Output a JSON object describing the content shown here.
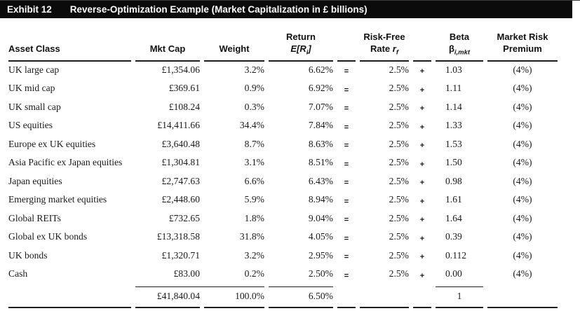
{
  "title_bar": {
    "exhibit_label": "Exhibit 12",
    "title": "Reverse-Optimization Example (Market Capitalization in £ billions)"
  },
  "table": {
    "headers": {
      "asset_class": "Asset Class",
      "mkt_cap": "Mkt Cap",
      "weight": "Weight",
      "return_line1": "Return",
      "return_pre": "E[R",
      "return_sub": "i",
      "return_post": "]",
      "riskfree_line1": "Risk-Free",
      "riskfree_word": "Rate ",
      "riskfree_sym": "r",
      "riskfree_sub": "f",
      "beta_line1": "Beta",
      "beta_sym": "β",
      "beta_sub": "i,mkt",
      "premium_line1": "Market Risk",
      "premium_line2": "Premium"
    },
    "rows": [
      {
        "label": "UK large cap",
        "mkt_cap": "£1,354.06",
        "weight": "3.2%",
        "ret": "6.62%",
        "eq": "=",
        "rf": "2.5%",
        "plus": "+",
        "beta": "1.03",
        "premium": "(4%)"
      },
      {
        "label": "UK mid cap",
        "mkt_cap": "£369.61",
        "weight": "0.9%",
        "ret": "6.92%",
        "eq": "=",
        "rf": "2.5%",
        "plus": "+",
        "beta": "1.11",
        "premium": "(4%)"
      },
      {
        "label": "UK small cap",
        "mkt_cap": "£108.24",
        "weight": "0.3%",
        "ret": "7.07%",
        "eq": "=",
        "rf": "2.5%",
        "plus": "+",
        "beta": "1.14",
        "premium": "(4%)"
      },
      {
        "label": "US equities",
        "mkt_cap": "£14,411.66",
        "weight": "34.4%",
        "ret": "7.84%",
        "eq": "=",
        "rf": "2.5%",
        "plus": "+",
        "beta": "1.33",
        "premium": "(4%)"
      },
      {
        "label": "Europe ex UK equities",
        "mkt_cap": "£3,640.48",
        "weight": "8.7%",
        "ret": "8.63%",
        "eq": "=",
        "rf": "2.5%",
        "plus": "+",
        "beta": "1.53",
        "premium": "(4%)"
      },
      {
        "label": "Asia Pacific ex Japan equities",
        "mkt_cap": "£1,304.81",
        "weight": "3.1%",
        "ret": "8.51%",
        "eq": "=",
        "rf": "2.5%",
        "plus": "+",
        "beta": "1.50",
        "premium": "(4%)"
      },
      {
        "label": "Japan equities",
        "mkt_cap": "£2,747.63",
        "weight": "6.6%",
        "ret": "6.43%",
        "eq": "=",
        "rf": "2.5%",
        "plus": "+",
        "beta": "0.98",
        "premium": "(4%)"
      },
      {
        "label": "Emerging market equities",
        "mkt_cap": "£2,448.60",
        "weight": "5.9%",
        "ret": "8.94%",
        "eq": "=",
        "rf": "2.5%",
        "plus": "+",
        "beta": "1.61",
        "premium": "(4%)"
      },
      {
        "label": "Global REITs",
        "mkt_cap": "£732.65",
        "weight": "1.8%",
        "ret": "9.04%",
        "eq": "=",
        "rf": "2.5%",
        "plus": "+",
        "beta": "1.64",
        "premium": "(4%)"
      },
      {
        "label": "Global ex UK bonds",
        "mkt_cap": "£13,318.58",
        "weight": "31.8%",
        "ret": "4.05%",
        "eq": "=",
        "rf": "2.5%",
        "plus": "+",
        "beta": "0.39",
        "premium": "(4%)"
      },
      {
        "label": "UK bonds",
        "mkt_cap": "£1,320.71",
        "weight": "3.2%",
        "ret": "2.95%",
        "eq": "=",
        "rf": "2.5%",
        "plus": "+",
        "beta": "0.112",
        "premium": "(4%)"
      },
      {
        "label": "Cash",
        "mkt_cap": "£83.00",
        "weight": "0.2%",
        "ret": "2.50%",
        "eq": "=",
        "rf": "2.5%",
        "plus": "+",
        "beta": "0.00",
        "premium": "(4%)"
      }
    ],
    "totals": {
      "mkt_cap": "£41,840.04",
      "weight": "100.0%",
      "ret": "6.50%",
      "beta": "1"
    }
  }
}
